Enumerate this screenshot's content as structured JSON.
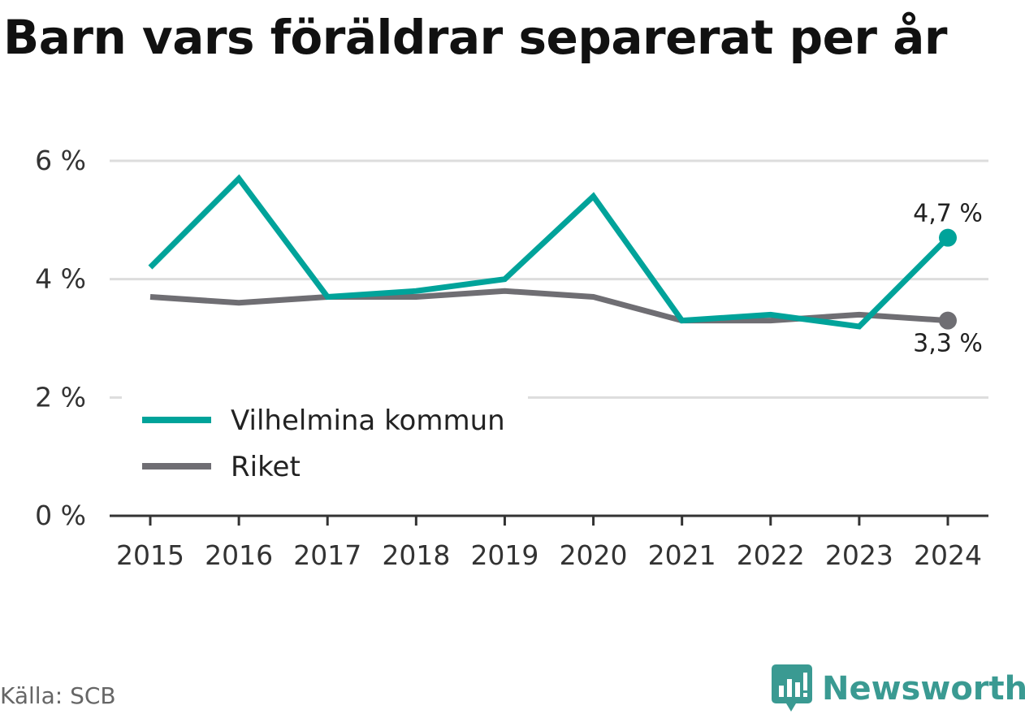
{
  "title": "Barn vars föräldrar separerat per år",
  "source": "Källa: SCB",
  "brand": "Newsworthy",
  "colors": {
    "series_primary": "#00a39a",
    "series_secondary": "#6f6e73",
    "grid": "#dddddd",
    "axis": "#333333",
    "brand": "#3a9a92"
  },
  "chart_data": {
    "type": "line",
    "x": [
      "2015",
      "2016",
      "2017",
      "2018",
      "2019",
      "2020",
      "2021",
      "2022",
      "2023",
      "2024"
    ],
    "series": [
      {
        "name": "Vilhelmina kommun",
        "values": [
          4.2,
          5.7,
          3.7,
          3.8,
          4.0,
          5.4,
          3.3,
          3.4,
          3.2,
          4.7
        ]
      },
      {
        "name": "Riket",
        "values": [
          3.7,
          3.6,
          3.7,
          3.7,
          3.8,
          3.7,
          3.3,
          3.3,
          3.4,
          3.3
        ]
      }
    ],
    "yticks": [
      {
        "value": 0,
        "label": "0 %"
      },
      {
        "value": 2,
        "label": "2 %"
      },
      {
        "value": 4,
        "label": "4 %"
      },
      {
        "value": 6,
        "label": "6 %"
      }
    ],
    "end_labels": [
      "4,7 %",
      "3,3 %"
    ],
    "ylim": [
      0,
      6
    ],
    "grid": true,
    "legend": "bottom-left"
  }
}
